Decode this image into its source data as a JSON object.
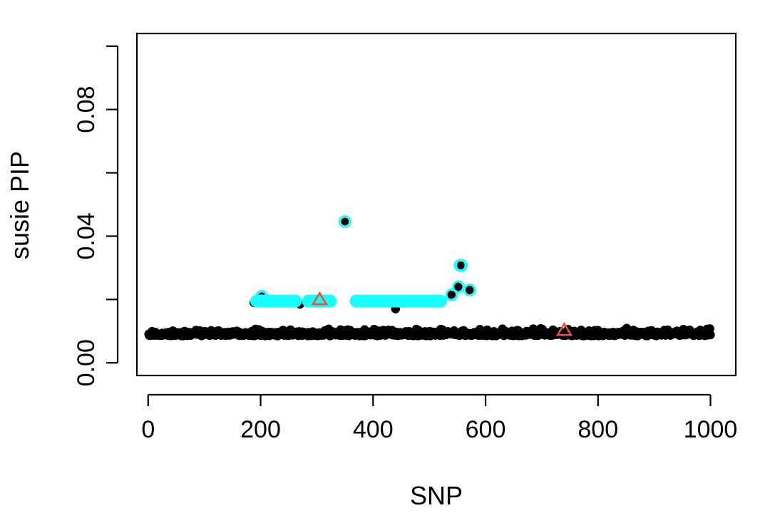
{
  "chart_data": {
    "type": "scatter",
    "title": "",
    "xlabel": "SNP",
    "ylabel": "susie PIP",
    "xlim": [
      -20,
      1045
    ],
    "ylim": [
      -0.004,
      0.104
    ],
    "x_ticks": [
      0,
      200,
      400,
      600,
      800,
      1000
    ],
    "x_tick_labels": [
      "0",
      "200",
      "400",
      "600",
      "800",
      "1000"
    ],
    "y_ticks": [
      0.0,
      0.02,
      0.04,
      0.06,
      0.08,
      0.1
    ],
    "y_tick_labels": [
      "0.00",
      "",
      "0.04",
      "",
      "0.08",
      ""
    ],
    "grid": false,
    "legend": "none",
    "n_snps": 1000,
    "baseline_pip_range": [
      0.0085,
      0.011
    ],
    "series": [
      {
        "role": "all SNPs",
        "marker": "filled circle",
        "color": "#000000",
        "note": "SNPs 1-1000 at baseline PIP ~0.0085-0.011, except listed elevated points",
        "elevated_points": [
          {
            "x": 188,
            "y": 0.019
          },
          {
            "x": 270,
            "y": 0.0185
          },
          {
            "x": 440,
            "y": 0.017
          },
          {
            "x": 537,
            "y": 0.0215
          },
          {
            "x": 550,
            "y": 0.024
          },
          {
            "x": 571,
            "y": 0.023
          }
        ]
      },
      {
        "role": "credible set SNPs",
        "marker": "open circle",
        "color": "#19ffff",
        "x_ranges": [
          [
            193,
            262
          ],
          [
            285,
            325
          ],
          [
            370,
            520
          ]
        ],
        "y": 0.0195,
        "extra_points": [
          {
            "x": 202,
            "y": 0.021
          },
          {
            "x": 350,
            "y": 0.0446
          },
          {
            "x": 540,
            "y": 0.0215
          },
          {
            "x": 552,
            "y": 0.024
          },
          {
            "x": 555,
            "y": 0.0308
          },
          {
            "x": 557,
            "y": 0.0308
          },
          {
            "x": 572,
            "y": 0.023
          }
        ]
      },
      {
        "role": "causal SNPs",
        "marker": "open triangle",
        "color": "#e8503a",
        "points": [
          {
            "x": 305,
            "y": 0.02
          },
          {
            "x": 740,
            "y": 0.0103
          }
        ]
      }
    ]
  }
}
